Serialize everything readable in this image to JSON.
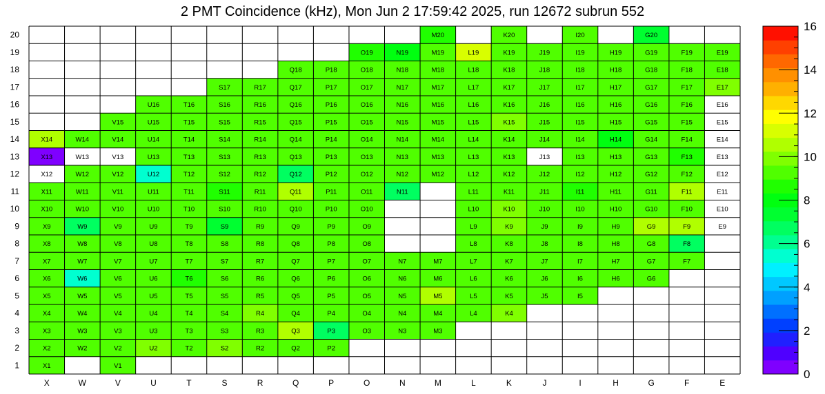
{
  "chart_data": {
    "type": "heatmap",
    "title": "2 PMT Coincidence (kHz), Mon Jun  2 17:59:42 2025, run 12672 subrun 552",
    "x_tick_labels": [
      "X",
      "W",
      "V",
      "U",
      "T",
      "S",
      "R",
      "Q",
      "P",
      "O",
      "N",
      "M",
      "L",
      "K",
      "J",
      "I",
      "H",
      "G",
      "F",
      "E"
    ],
    "y_tick_labels": [
      "1",
      "2",
      "3",
      "4",
      "5",
      "6",
      "7",
      "8",
      "9",
      "10",
      "11",
      "12",
      "13",
      "14",
      "15",
      "16",
      "17",
      "18",
      "19",
      "20"
    ],
    "colorbar": {
      "min": 0,
      "max": 16,
      "tick_labels": [
        "0",
        "2",
        "4",
        "6",
        "8",
        "10",
        "12",
        "14",
        "16"
      ]
    },
    "palette": [
      "#7f00ff",
      "#4f00ff",
      "#2020ff",
      "#0040ff",
      "#0070ff",
      "#00a0ff",
      "#00c8ff",
      "#00f0ff",
      "#00ffd0",
      "#00ff90",
      "#00ff60",
      "#00ff30",
      "#00ff10",
      "#20ff00",
      "#50ff00",
      "#80ff00",
      "#b0ff00",
      "#d8ff00",
      "#ffff00",
      "#ffd800",
      "#ffb000",
      "#ff9000",
      "#ff6800",
      "#ff4000",
      "#ff1000"
    ],
    "rows": [
      {
        "y": "20",
        "cells": {
          "M": 8.5,
          "K": 9.0,
          "I": 9.0,
          "G": 7.5
        }
      },
      {
        "y": "19",
        "cells": {
          "O": 8.5,
          "N": 8.0,
          "M": 9.5,
          "L": 11.0,
          "K": 9.0,
          "J": 9.5,
          "I": 9.5,
          "H": 9.5,
          "G": 9.0,
          "F": 9.5,
          "E": 9.5
        }
      },
      {
        "y": "18",
        "cells": {
          "Q": 9.5,
          "P": 9.5,
          "O": 9.0,
          "N": 9.0,
          "M": 9.5,
          "L": 9.0,
          "K": 9.0,
          "J": 9.0,
          "I": 9.5,
          "H": 9.5,
          "G": 9.0,
          "F": 9.5,
          "E": 9.5
        }
      },
      {
        "y": "17",
        "cells": {
          "S": 9.0,
          "R": 9.5,
          "Q": 9.5,
          "P": 9.5,
          "O": 9.0,
          "N": 9.0,
          "M": 9.5,
          "L": 9.0,
          "K": 9.0,
          "J": 9.0,
          "I": 9.5,
          "H": 9.5,
          "G": 9.5,
          "F": 9.5,
          "E": 10.0
        }
      },
      {
        "y": "16",
        "cells": {
          "U": 9.5,
          "T": 9.5,
          "S": 9.5,
          "R": 9.5,
          "Q": 9.5,
          "P": 9.5,
          "O": 9.0,
          "N": 9.5,
          "M": 9.5,
          "L": 9.5,
          "K": 9.5,
          "J": 9.0,
          "I": 9.5,
          "H": 9.5,
          "G": 9.5,
          "F": 9.5,
          "E": 0
        }
      },
      {
        "y": "15",
        "cells": {
          "V": 9.0,
          "U": 9.5,
          "T": 9.5,
          "S": 9.5,
          "R": 9.5,
          "Q": 9.5,
          "P": 9.5,
          "O": 9.0,
          "N": 9.0,
          "M": 9.5,
          "L": 9.5,
          "K": 10.0,
          "J": 9.5,
          "I": 9.5,
          "H": 9.5,
          "G": 9.5,
          "F": 9.5,
          "E": 0
        }
      },
      {
        "y": "14",
        "cells": {
          "X": 10.5,
          "W": 9.5,
          "V": 9.5,
          "U": 9.5,
          "T": 9.5,
          "S": 9.5,
          "R": 9.5,
          "Q": 9.5,
          "P": 9.5,
          "O": 9.0,
          "N": 9.5,
          "M": 9.5,
          "L": 9.5,
          "K": 9.0,
          "J": 9.5,
          "I": 9.5,
          "H": 8.0,
          "G": 9.0,
          "F": 9.5,
          "E": 0
        }
      },
      {
        "y": "13",
        "cells": {
          "X": 0.5,
          "W": 0,
          "V": 0,
          "U": 9.5,
          "T": 9.5,
          "S": 9.5,
          "R": 9.5,
          "Q": 9.5,
          "P": 9.5,
          "O": 9.0,
          "N": 9.0,
          "M": 9.0,
          "L": 9.0,
          "K": 9.0,
          "J": 0,
          "I": 9.5,
          "H": 9.5,
          "G": 9.0,
          "F": 8.5,
          "E": 0
        }
      },
      {
        "y": "12",
        "cells": {
          "X": 0,
          "W": 9.5,
          "V": 9.5,
          "U": 5.5,
          "T": 9.5,
          "S": 9.5,
          "R": 9.5,
          "Q": 7.0,
          "P": 9.5,
          "O": 9.0,
          "N": 9.5,
          "M": 9.0,
          "L": 9.0,
          "K": 9.0,
          "J": 9.5,
          "I": 9.5,
          "H": 9.5,
          "G": 9.5,
          "F": 9.5,
          "E": 0
        }
      },
      {
        "y": "11",
        "cells": {
          "X": 9.5,
          "W": 9.5,
          "V": 9.5,
          "U": 9.5,
          "T": 9.5,
          "S": 8.5,
          "R": 9.5,
          "Q": 10.5,
          "P": 9.5,
          "O": 9.0,
          "N": 7.0,
          "L": 9.5,
          "K": 9.5,
          "J": 9.5,
          "I": 8.5,
          "H": 9.5,
          "G": 9.5,
          "F": 10.5,
          "E": 0
        }
      },
      {
        "y": "10",
        "cells": {
          "X": 9.5,
          "W": 9.5,
          "V": 9.5,
          "U": 9.5,
          "T": 9.5,
          "S": 9.5,
          "R": 9.5,
          "Q": 9.5,
          "P": 9.5,
          "O": 9.5,
          "L": 9.5,
          "K": 10.0,
          "J": 9.5,
          "I": 9.5,
          "H": 9.5,
          "G": 9.5,
          "F": 9.5,
          "E": 0
        }
      },
      {
        "y": "9",
        "cells": {
          "X": 9.5,
          "W": 7.0,
          "V": 9.5,
          "U": 9.5,
          "T": 9.5,
          "S": 7.5,
          "R": 9.5,
          "Q": 9.5,
          "P": 9.5,
          "O": 9.0,
          "L": 9.5,
          "K": 10.0,
          "J": 9.5,
          "I": 9.5,
          "H": 9.5,
          "G": 10.5,
          "F": 10.5,
          "E": 0
        }
      },
      {
        "y": "8",
        "cells": {
          "X": 9.5,
          "W": 9.5,
          "V": 9.5,
          "U": 9.5,
          "T": 9.5,
          "S": 9.5,
          "R": 9.5,
          "Q": 9.5,
          "P": 9.5,
          "O": 9.5,
          "L": 9.5,
          "K": 9.5,
          "J": 9.5,
          "I": 9.5,
          "H": 9.5,
          "G": 9.5,
          "F": 6.5
        }
      },
      {
        "y": "7",
        "cells": {
          "X": 9.5,
          "W": 9.5,
          "V": 9.5,
          "U": 9.5,
          "T": 9.5,
          "S": 9.5,
          "R": 9.5,
          "Q": 9.5,
          "P": 9.5,
          "O": 9.5,
          "N": 9.5,
          "M": 9.5,
          "L": 9.5,
          "K": 9.5,
          "J": 9.5,
          "I": 9.5,
          "H": 9.5,
          "G": 9.5,
          "F": 9.5
        }
      },
      {
        "y": "6",
        "cells": {
          "X": 9.5,
          "W": 5.5,
          "V": 9.5,
          "U": 9.5,
          "T": 8.5,
          "S": 9.5,
          "R": 9.5,
          "Q": 9.5,
          "P": 9.5,
          "O": 9.5,
          "N": 9.5,
          "M": 9.5,
          "L": 9.5,
          "K": 9.5,
          "J": 9.5,
          "I": 9.0,
          "H": 9.5,
          "G": 9.5
        }
      },
      {
        "y": "5",
        "cells": {
          "X": 9.5,
          "W": 9.5,
          "V": 9.5,
          "U": 9.5,
          "T": 9.5,
          "S": 9.5,
          "R": 9.5,
          "Q": 9.5,
          "P": 9.5,
          "O": 9.5,
          "N": 9.5,
          "M": 10.5,
          "L": 9.5,
          "K": 9.5,
          "J": 9.5,
          "I": 9.5
        }
      },
      {
        "y": "4",
        "cells": {
          "X": 9.5,
          "W": 9.5,
          "V": 9.5,
          "U": 9.5,
          "T": 9.5,
          "S": 9.5,
          "R": 10.0,
          "Q": 9.5,
          "P": 9.5,
          "O": 9.5,
          "N": 9.5,
          "M": 9.5,
          "L": 9.5,
          "K": 10.0
        }
      },
      {
        "y": "3",
        "cells": {
          "X": 9.0,
          "W": 9.0,
          "V": 9.5,
          "U": 9.5,
          "T": 9.5,
          "S": 9.5,
          "R": 9.5,
          "Q": 10.5,
          "P": 6.5,
          "O": 9.0,
          "N": 9.0,
          "M": 9.0
        }
      },
      {
        "y": "2",
        "cells": {
          "X": 9.5,
          "W": 9.0,
          "V": 9.5,
          "U": 10.0,
          "T": 9.5,
          "S": 10.0,
          "R": 9.5,
          "Q": 9.5,
          "P": 9.5
        }
      },
      {
        "y": "1",
        "cells": {
          "X": 9.5,
          "V": 9.0
        }
      }
    ]
  }
}
